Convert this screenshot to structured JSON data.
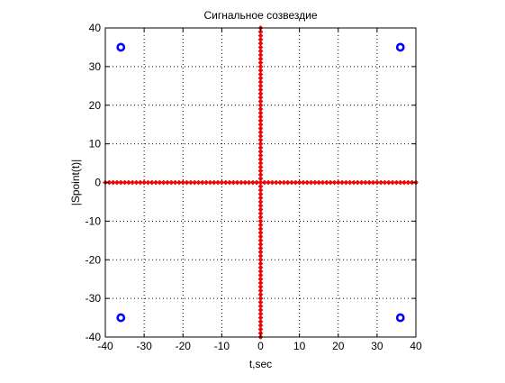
{
  "chart_data": {
    "type": "scatter",
    "title": "Сигнальное созвездие",
    "xlabel": "t,sec",
    "ylabel": "|Spoint(t)|",
    "xlim": [
      -40,
      40
    ],
    "ylim": [
      -40,
      40
    ],
    "xticks": [
      -40,
      -30,
      -20,
      -10,
      0,
      10,
      20,
      30,
      40
    ],
    "yticks": [
      -40,
      -30,
      -20,
      -10,
      0,
      10,
      20,
      30,
      40
    ],
    "grid": true,
    "grid_style": "dotted",
    "axes_color": "#000000",
    "series": [
      {
        "marker": "circle",
        "color": "#0000ff",
        "points": [
          {
            "x": -36,
            "y": 35
          },
          {
            "x": 36,
            "y": 35
          },
          {
            "x": -36,
            "y": -35
          },
          {
            "x": 36,
            "y": -35
          }
        ]
      },
      {
        "marker": "diamond",
        "color": "#ff0000",
        "edge_color": "#c00000",
        "lines": [
          {
            "orientation": "horizontal",
            "value": 0,
            "from": -40,
            "to": 40,
            "step": 1
          },
          {
            "orientation": "vertical",
            "value": 0,
            "from": -40,
            "to": 40,
            "step": 1
          }
        ]
      }
    ]
  }
}
